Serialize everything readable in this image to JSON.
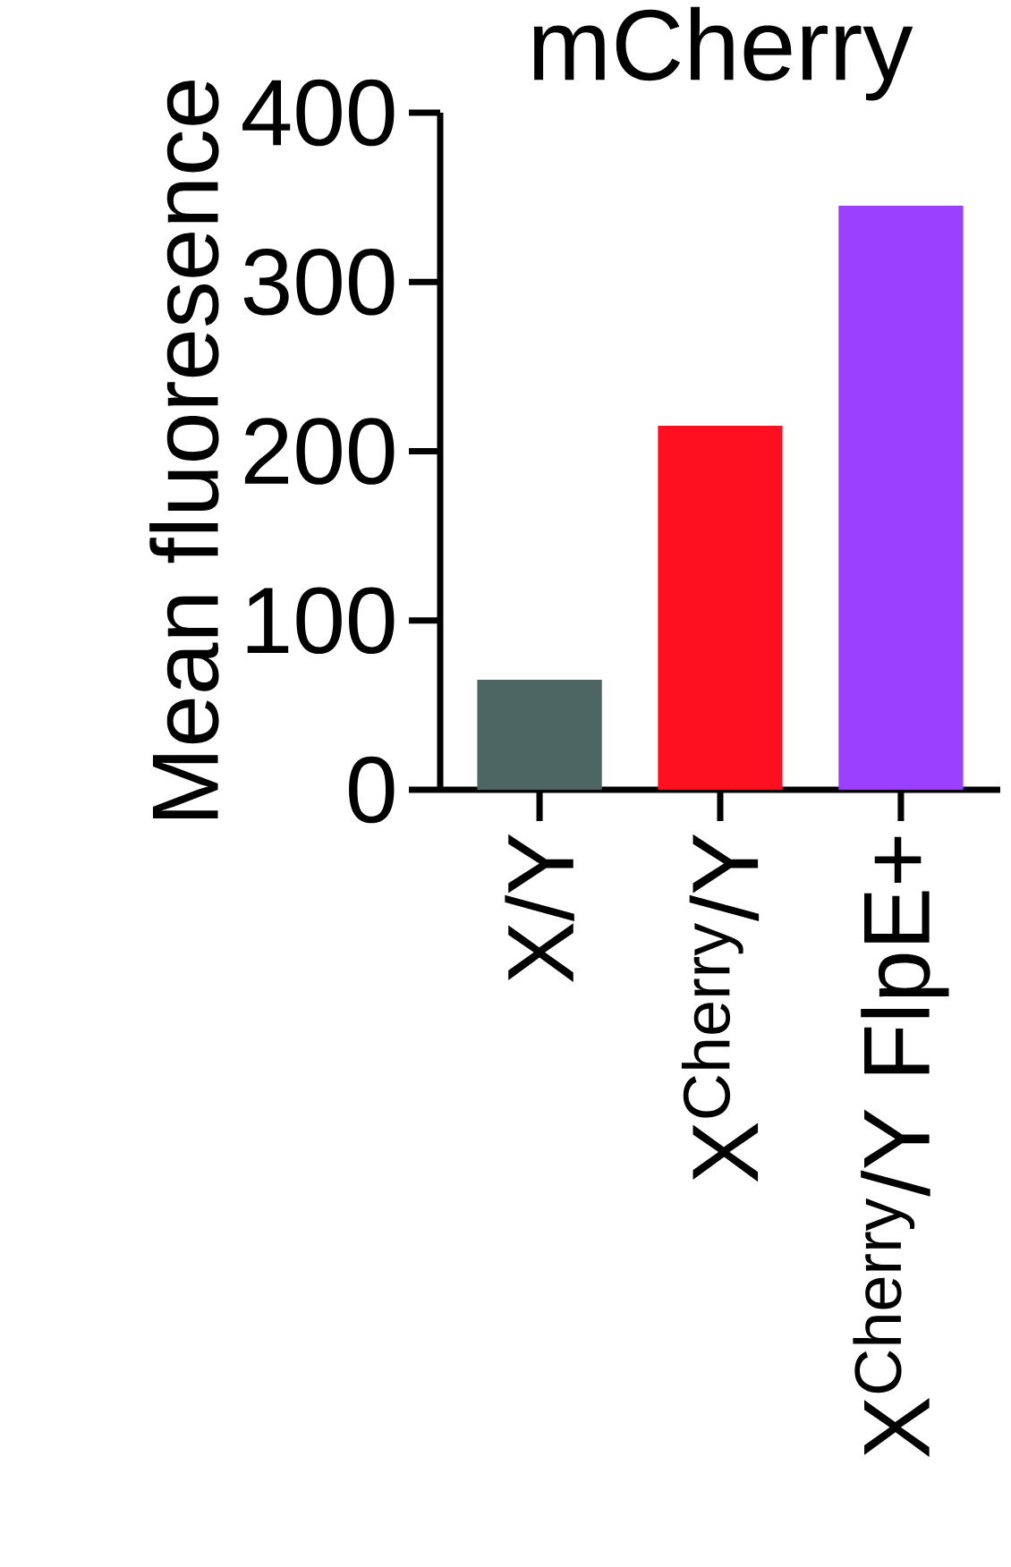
{
  "chart_data": {
    "type": "bar",
    "title": "mCherry",
    "ylabel": "Mean fluoresence",
    "categories": [
      "X/Y",
      "X$^{Cherry}$/Y",
      "X$^{Cherry}$/Y FlpE+"
    ],
    "values": [
      65,
      215,
      345
    ],
    "colors": [
      "#4d6563",
      "#ff1020",
      "#9b40ff"
    ],
    "ylim": [
      0,
      400
    ],
    "yticks": [
      0,
      100,
      200,
      300,
      400
    ]
  }
}
